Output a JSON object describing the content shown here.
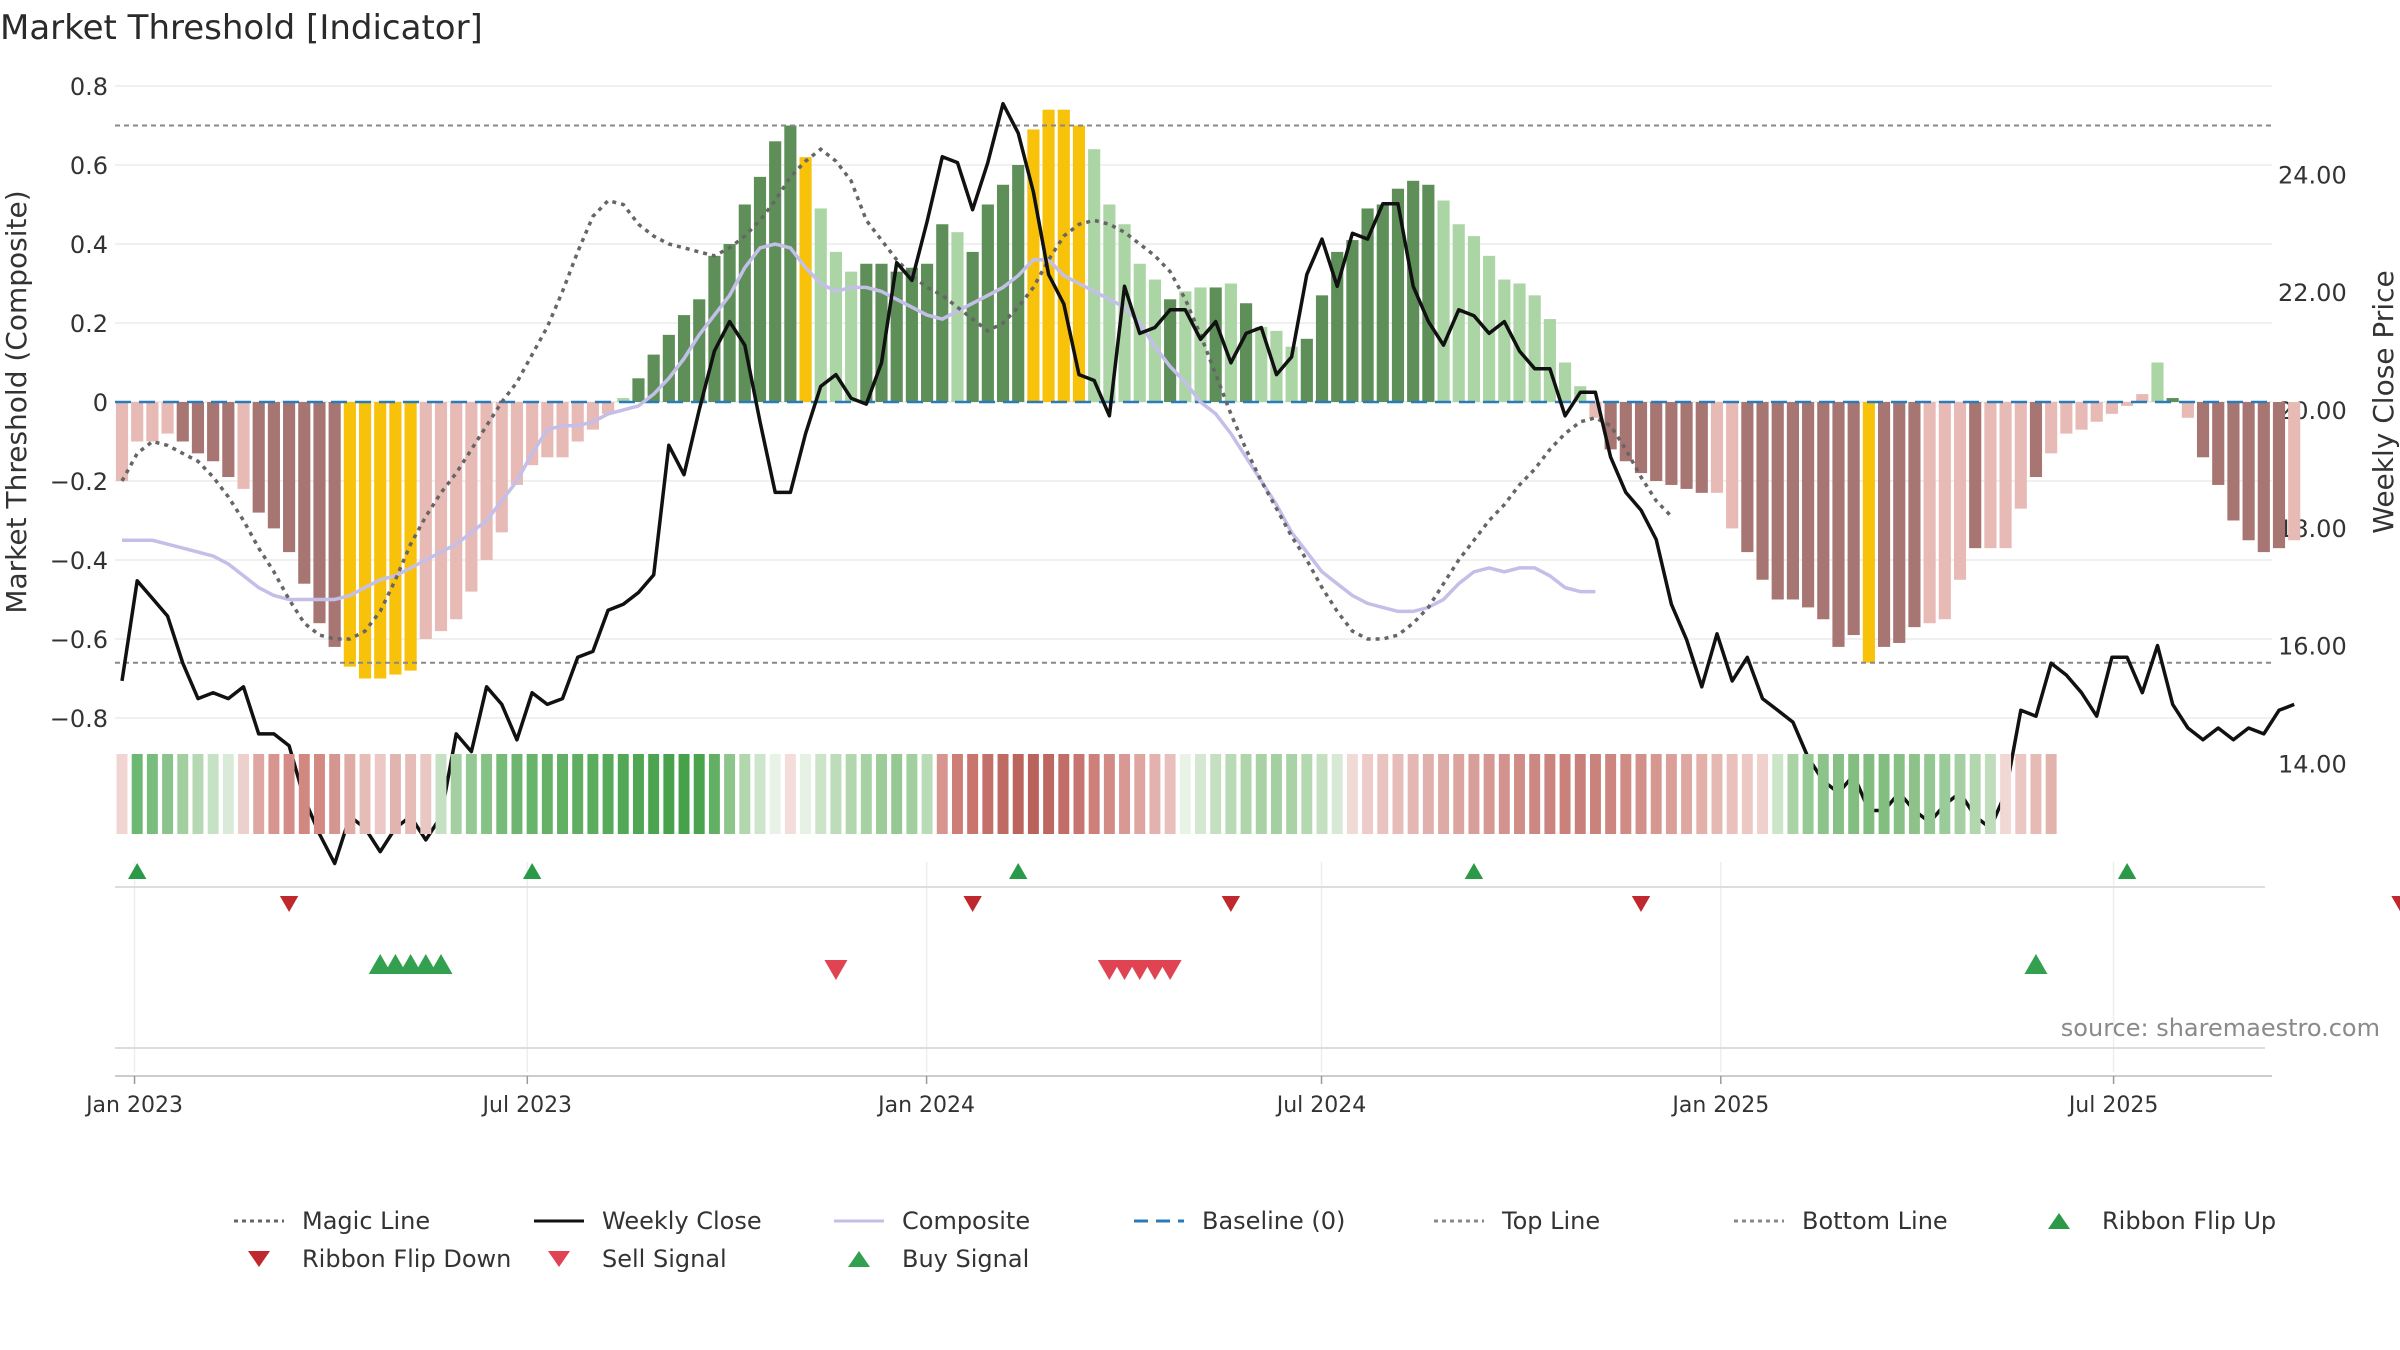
{
  "title": "Market Threshold [Indicator]",
  "source_note": "source: sharemaestro.com",
  "colors": {
    "dark_green": "#5e8f59",
    "light_green": "#acd5a5",
    "dark_red": "#a87672",
    "light_red": "#e8bab5",
    "gold": "#f8c20a",
    "magic": "#666666",
    "close": "#111111",
    "composite": "#c4bfe8",
    "baseline": "#2b7bb9",
    "guide": "#888888",
    "flip_up": "#2a9a48",
    "flip_down": "#c0282f",
    "sell": "#e04452",
    "buy": "#33a04f"
  },
  "legend": [
    {
      "key": "magic",
      "label": "Magic Line",
      "style": "dotted"
    },
    {
      "key": "close",
      "label": "Weekly Close",
      "style": "solid"
    },
    {
      "key": "composite",
      "label": "Composite",
      "style": "solid"
    },
    {
      "key": "baseline",
      "label": "Baseline (0)",
      "style": "dashed"
    },
    {
      "key": "guide",
      "label": "Top Line",
      "style": "dotted"
    },
    {
      "key": "guide",
      "label": "Bottom Line",
      "style": "dotted"
    },
    {
      "key": "flip_up",
      "label": "Ribbon Flip Up",
      "style": "tri-up"
    },
    {
      "key": "flip_down",
      "label": "Ribbon Flip Down",
      "style": "tri-down"
    },
    {
      "key": "sell",
      "label": "Sell Signal",
      "style": "tri-down"
    },
    {
      "key": "buy",
      "label": "Buy Signal",
      "style": "tri-up"
    }
  ],
  "chart_data": {
    "type": "bar",
    "title": "Market Threshold [Indicator]",
    "ylabel_left": "Market Threshold (Composite)",
    "ylabel_right": "Weekly Close Price",
    "ylim_left": [
      -0.8,
      0.8
    ],
    "yticks_left": [
      "0.8",
      "0.6",
      "0.4",
      "0.2",
      "0",
      "−0.2",
      "−0.4",
      "−0.6",
      "−0.8"
    ],
    "ylim_right": [
      12.0,
      25.5
    ],
    "yticks_right": [
      "24.00",
      "22.00",
      "20.00",
      "18.00",
      "16.00",
      "14.00"
    ],
    "x_start": "2022-12-23",
    "x_end": "2025-09-12",
    "xticks": [
      "Jan 2023",
      "Jul 2023",
      "Jan 2024",
      "Jul 2024",
      "Jan 2025",
      "Jul 2025"
    ],
    "top_line": 0.7,
    "bottom_line": -0.66,
    "baseline": 0,
    "bar_values": [
      -0.2,
      -0.1,
      -0.1,
      -0.08,
      -0.1,
      -0.13,
      -0.15,
      -0.19,
      -0.22,
      -0.28,
      -0.32,
      -0.38,
      -0.46,
      -0.56,
      -0.62,
      -0.67,
      -0.7,
      -0.7,
      -0.69,
      -0.68,
      -0.6,
      -0.58,
      -0.55,
      -0.48,
      -0.4,
      -0.33,
      -0.21,
      -0.16,
      -0.14,
      -0.14,
      -0.1,
      -0.07,
      -0.03,
      0.01,
      0.06,
      0.12,
      0.17,
      0.22,
      0.26,
      0.37,
      0.4,
      0.5,
      0.57,
      0.66,
      0.7,
      0.62,
      0.49,
      0.38,
      0.33,
      0.35,
      0.35,
      0.33,
      0.34,
      0.35,
      0.45,
      0.43,
      0.38,
      0.5,
      0.55,
      0.6,
      0.69,
      0.74,
      0.74,
      0.7,
      0.64,
      0.5,
      0.45,
      0.35,
      0.31,
      0.26,
      0.28,
      0.29,
      0.29,
      0.3,
      0.25,
      0.19,
      0.18,
      0.14,
      0.16,
      0.27,
      0.38,
      0.41,
      0.49,
      0.5,
      0.54,
      0.56,
      0.55,
      0.51,
      0.45,
      0.42,
      0.37,
      0.31,
      0.3,
      0.27,
      0.21,
      0.1,
      0.04,
      -0.04,
      -0.12,
      -0.15,
      -0.18,
      -0.2,
      -0.21,
      -0.22,
      -0.23,
      -0.23,
      -0.32,
      -0.38,
      -0.45,
      -0.5,
      -0.5,
      -0.52,
      -0.55,
      -0.62,
      -0.59,
      -0.66,
      -0.62,
      -0.61,
      -0.57,
      -0.56,
      -0.55,
      -0.45,
      -0.37,
      -0.37,
      -0.37,
      -0.27,
      -0.19,
      -0.13,
      -0.08,
      -0.07,
      -0.05,
      -0.03,
      -0.01,
      0.02,
      0.1,
      0.01,
      -0.04,
      -0.14,
      -0.21,
      -0.3,
      -0.35,
      -0.38,
      -0.37,
      -0.35
    ],
    "bar_colors": [
      "lr",
      "lr",
      "lr",
      "lr",
      "dr",
      "dr",
      "dr",
      "dr",
      "lr",
      "dr",
      "dr",
      "dr",
      "dr",
      "dr",
      "dr",
      "g",
      "g",
      "g",
      "g",
      "g",
      "lr",
      "lr",
      "lr",
      "lr",
      "lr",
      "lr",
      "lr",
      "lr",
      "lr",
      "lr",
      "lr",
      "lr",
      "lr",
      "lg",
      "dg",
      "dg",
      "dg",
      "dg",
      "dg",
      "dg",
      "dg",
      "dg",
      "dg",
      "dg",
      "dg",
      "g",
      "lg",
      "lg",
      "lg",
      "dg",
      "dg",
      "dg",
      "dg",
      "dg",
      "dg",
      "lg",
      "dg",
      "dg",
      "dg",
      "dg",
      "g",
      "g",
      "g",
      "g",
      "lg",
      "lg",
      "lg",
      "lg",
      "lg",
      "dg",
      "lg",
      "lg",
      "dg",
      "lg",
      "dg",
      "lg",
      "lg",
      "lg",
      "dg",
      "dg",
      "dg",
      "dg",
      "dg",
      "dg",
      "dg",
      "dg",
      "dg",
      "lg",
      "lg",
      "lg",
      "lg",
      "lg",
      "lg",
      "lg",
      "lg",
      "lg",
      "lg",
      "lr",
      "dr",
      "dr",
      "dr",
      "dr",
      "dr",
      "dr",
      "dr",
      "lr",
      "lr",
      "dr",
      "dr",
      "dr",
      "dr",
      "dr",
      "dr",
      "dr",
      "dr",
      "g",
      "dr",
      "dr",
      "dr",
      "lr",
      "lr",
      "lr",
      "dr",
      "lr",
      "lr",
      "lr",
      "dr",
      "lr",
      "lr",
      "lr",
      "lr",
      "lr",
      "lr",
      "lr",
      "lg",
      "dg",
      "lr",
      "dr",
      "dr",
      "dr",
      "dr",
      "dr",
      "dr",
      "lr"
    ],
    "magic_line": [
      -0.2,
      -0.13,
      -0.1,
      -0.11,
      -0.13,
      -0.15,
      -0.19,
      -0.24,
      -0.3,
      -0.37,
      -0.43,
      -0.5,
      -0.56,
      -0.59,
      -0.6,
      -0.6,
      -0.58,
      -0.53,
      -0.45,
      -0.36,
      -0.29,
      -0.23,
      -0.18,
      -0.12,
      -0.06,
      0.0,
      0.05,
      0.12,
      0.19,
      0.28,
      0.38,
      0.47,
      0.51,
      0.5,
      0.45,
      0.42,
      0.4,
      0.39,
      0.38,
      0.37,
      0.39,
      0.42,
      0.46,
      0.51,
      0.57,
      0.61,
      0.64,
      0.61,
      0.56,
      0.46,
      0.41,
      0.36,
      0.32,
      0.29,
      0.27,
      0.24,
      0.21,
      0.18,
      0.2,
      0.24,
      0.29,
      0.36,
      0.42,
      0.45,
      0.46,
      0.45,
      0.43,
      0.4,
      0.37,
      0.33,
      0.26,
      0.17,
      0.07,
      -0.03,
      -0.12,
      -0.2,
      -0.27,
      -0.34,
      -0.4,
      -0.47,
      -0.53,
      -0.58,
      -0.6,
      -0.6,
      -0.59,
      -0.56,
      -0.52,
      -0.46,
      -0.4,
      -0.35,
      -0.3,
      -0.26,
      -0.21,
      -0.17,
      -0.12,
      -0.08,
      -0.05,
      -0.04,
      -0.06,
      -0.12,
      -0.19,
      -0.25,
      -0.29
    ],
    "magic_line_start_index": 0,
    "composite_line": [
      -0.35,
      -0.35,
      -0.35,
      -0.36,
      -0.37,
      -0.38,
      -0.39,
      -0.41,
      -0.44,
      -0.47,
      -0.49,
      -0.5,
      -0.5,
      -0.5,
      -0.5,
      -0.49,
      -0.47,
      -0.45,
      -0.44,
      -0.42,
      -0.4,
      -0.38,
      -0.36,
      -0.33,
      -0.3,
      -0.25,
      -0.2,
      -0.13,
      -0.07,
      -0.06,
      -0.06,
      -0.05,
      -0.03,
      -0.02,
      -0.01,
      0.02,
      0.06,
      0.11,
      0.17,
      0.22,
      0.27,
      0.34,
      0.39,
      0.4,
      0.39,
      0.34,
      0.3,
      0.28,
      0.29,
      0.29,
      0.28,
      0.26,
      0.24,
      0.22,
      0.21,
      0.23,
      0.25,
      0.27,
      0.29,
      0.32,
      0.36,
      0.36,
      0.32,
      0.3,
      0.28,
      0.26,
      0.24,
      0.2,
      0.14,
      0.09,
      0.05,
      0.0,
      -0.03,
      -0.08,
      -0.14,
      -0.2,
      -0.26,
      -0.33,
      -0.38,
      -0.43,
      -0.46,
      -0.49,
      -0.51,
      -0.52,
      -0.53,
      -0.53,
      -0.52,
      -0.5,
      -0.46,
      -0.43,
      -0.42,
      -0.43,
      -0.42,
      -0.42,
      -0.44,
      -0.47,
      -0.48,
      -0.48
    ],
    "close_prices": [
      15.4,
      17.1,
      16.8,
      16.5,
      15.7,
      15.1,
      15.2,
      15.1,
      15.3,
      14.5,
      14.5,
      14.3,
      13.4,
      12.8,
      12.3,
      13.1,
      12.9,
      12.5,
      12.9,
      13.1,
      12.7,
      13.1,
      14.5,
      14.2,
      15.3,
      15.0,
      14.4,
      15.2,
      15.0,
      15.1,
      15.8,
      15.9,
      16.6,
      16.7,
      16.9,
      17.2,
      19.4,
      18.9,
      20.0,
      21.0,
      21.5,
      21.1,
      19.8,
      18.6,
      18.6,
      19.6,
      20.4,
      20.6,
      20.2,
      20.1,
      20.8,
      22.5,
      22.2,
      23.2,
      24.3,
      24.2,
      23.4,
      24.2,
      25.2,
      24.7,
      23.7,
      22.3,
      21.8,
      20.6,
      20.5,
      19.9,
      22.1,
      21.3,
      21.4,
      21.7,
      21.7,
      21.2,
      21.5,
      20.8,
      21.3,
      21.4,
      20.6,
      20.9,
      22.3,
      22.9,
      22.1,
      23.0,
      22.9,
      23.5,
      23.5,
      22.1,
      21.5,
      21.1,
      21.7,
      21.6,
      21.3,
      21.5,
      21.0,
      20.7,
      20.7,
      19.9,
      20.3,
      20.3,
      19.2,
      18.6,
      18.3,
      17.8,
      16.7,
      16.1,
      15.3,
      16.2,
      15.4,
      15.8,
      15.1,
      14.9,
      14.7,
      14.1,
      13.7,
      13.5,
      13.8,
      13.2,
      13.2,
      13.5,
      13.2,
      13.0,
      13.3,
      13.5,
      13.1,
      12.9,
      13.5,
      14.9,
      14.8,
      15.7,
      15.5,
      15.2,
      14.8,
      15.8,
      15.8,
      15.2,
      16.0,
      15.0,
      14.6,
      14.4,
      14.6,
      14.4,
      14.6,
      14.5,
      14.9,
      15.0
    ],
    "ribbon_colors": [
      "#f1d5d2",
      "#6db872",
      "#79bd7c",
      "#8ac48c",
      "#a2cf9f",
      "#b6d9b3",
      "#c6e2c4",
      "#d9ebd8",
      "#ecd0cd",
      "#dfa7a2",
      "#d8958f",
      "#d48d86",
      "#d08880",
      "#d28a83",
      "#d59590",
      "#e0aaa5",
      "#e6bcb7",
      "#ecc9c6",
      "#e2b4af",
      "#e5bcb8",
      "#e9c7c3",
      "#c4e1c1",
      "#a4d0a1",
      "#94c994",
      "#86c286",
      "#77bb78",
      "#6eb66f",
      "#69b46b",
      "#65b267",
      "#62b064",
      "#5fae61",
      "#5bad5e",
      "#58ab5b",
      "#53a857",
      "#4fa653",
      "#4ca450",
      "#48a24c",
      "#46a14a",
      "#4aa34d",
      "#62b064",
      "#8ec58d",
      "#b2d7ae",
      "#cde5ca",
      "#e8f2e6",
      "#f3dcd9",
      "#e5f1e3",
      "#cbe4c8",
      "#bddcb9",
      "#b2d7ae",
      "#a6d1a2",
      "#9dcc99",
      "#96c893",
      "#a2cf9f",
      "#b9dbb6",
      "#d8958f",
      "#cd7e77",
      "#c9746d",
      "#c4706a",
      "#c06a64",
      "#bc655f",
      "#ba625c",
      "#bd6761",
      "#c26d67",
      "#c77570",
      "#cd7f7a",
      "#d38b86",
      "#d99893",
      "#dfa5a1",
      "#e4b2ae",
      "#e9bfbb",
      "#e8f2e6",
      "#d4e8d1",
      "#c4e0c1",
      "#b8dab5",
      "#afd5ab",
      "#a8d2a4",
      "#a4d0a1",
      "#a9d3a6",
      "#b4d8b0",
      "#c4e0c1",
      "#d6e9d4",
      "#f1d9d6",
      "#eccbc8",
      "#e8c3bf",
      "#e6bdb9",
      "#e4b7b3",
      "#e1b0ac",
      "#deaaa5",
      "#dba49f",
      "#d89e99",
      "#d59893",
      "#d3928d",
      "#d08d88",
      "#ce8883",
      "#cc847f",
      "#ca817c",
      "#c97f7a",
      "#ca827d",
      "#cc867f",
      "#cf8b84",
      "#d2908a",
      "#d69791",
      "#da9f98",
      "#dea7a1",
      "#e2afa9",
      "#e6b8b2",
      "#e9c0bb",
      "#ecc8c4",
      "#efd0cc",
      "#cce5c9",
      "#a9d3a5",
      "#97c995",
      "#8cc38a",
      "#86c084",
      "#82be80",
      "#81bd7f",
      "#83be81",
      "#87c085",
      "#8dc38b",
      "#94c792",
      "#9ccb9a",
      "#a6d0a3",
      "#b2d6ae",
      "#bfdcbb",
      "#f1d8d5",
      "#ebc6c2",
      "#e6bbb6",
      "#e2b2ad"
    ],
    "ribbon_start_index": 0,
    "flip_up_idx": [
      1,
      27,
      59,
      89,
      132
    ],
    "flip_down_idx": [
      11,
      56,
      73,
      100,
      150
    ],
    "buy_idx": [
      17,
      18,
      19,
      20,
      21,
      126
    ],
    "sell_idx": [
      47,
      65,
      66,
      67,
      68,
      69
    ]
  }
}
